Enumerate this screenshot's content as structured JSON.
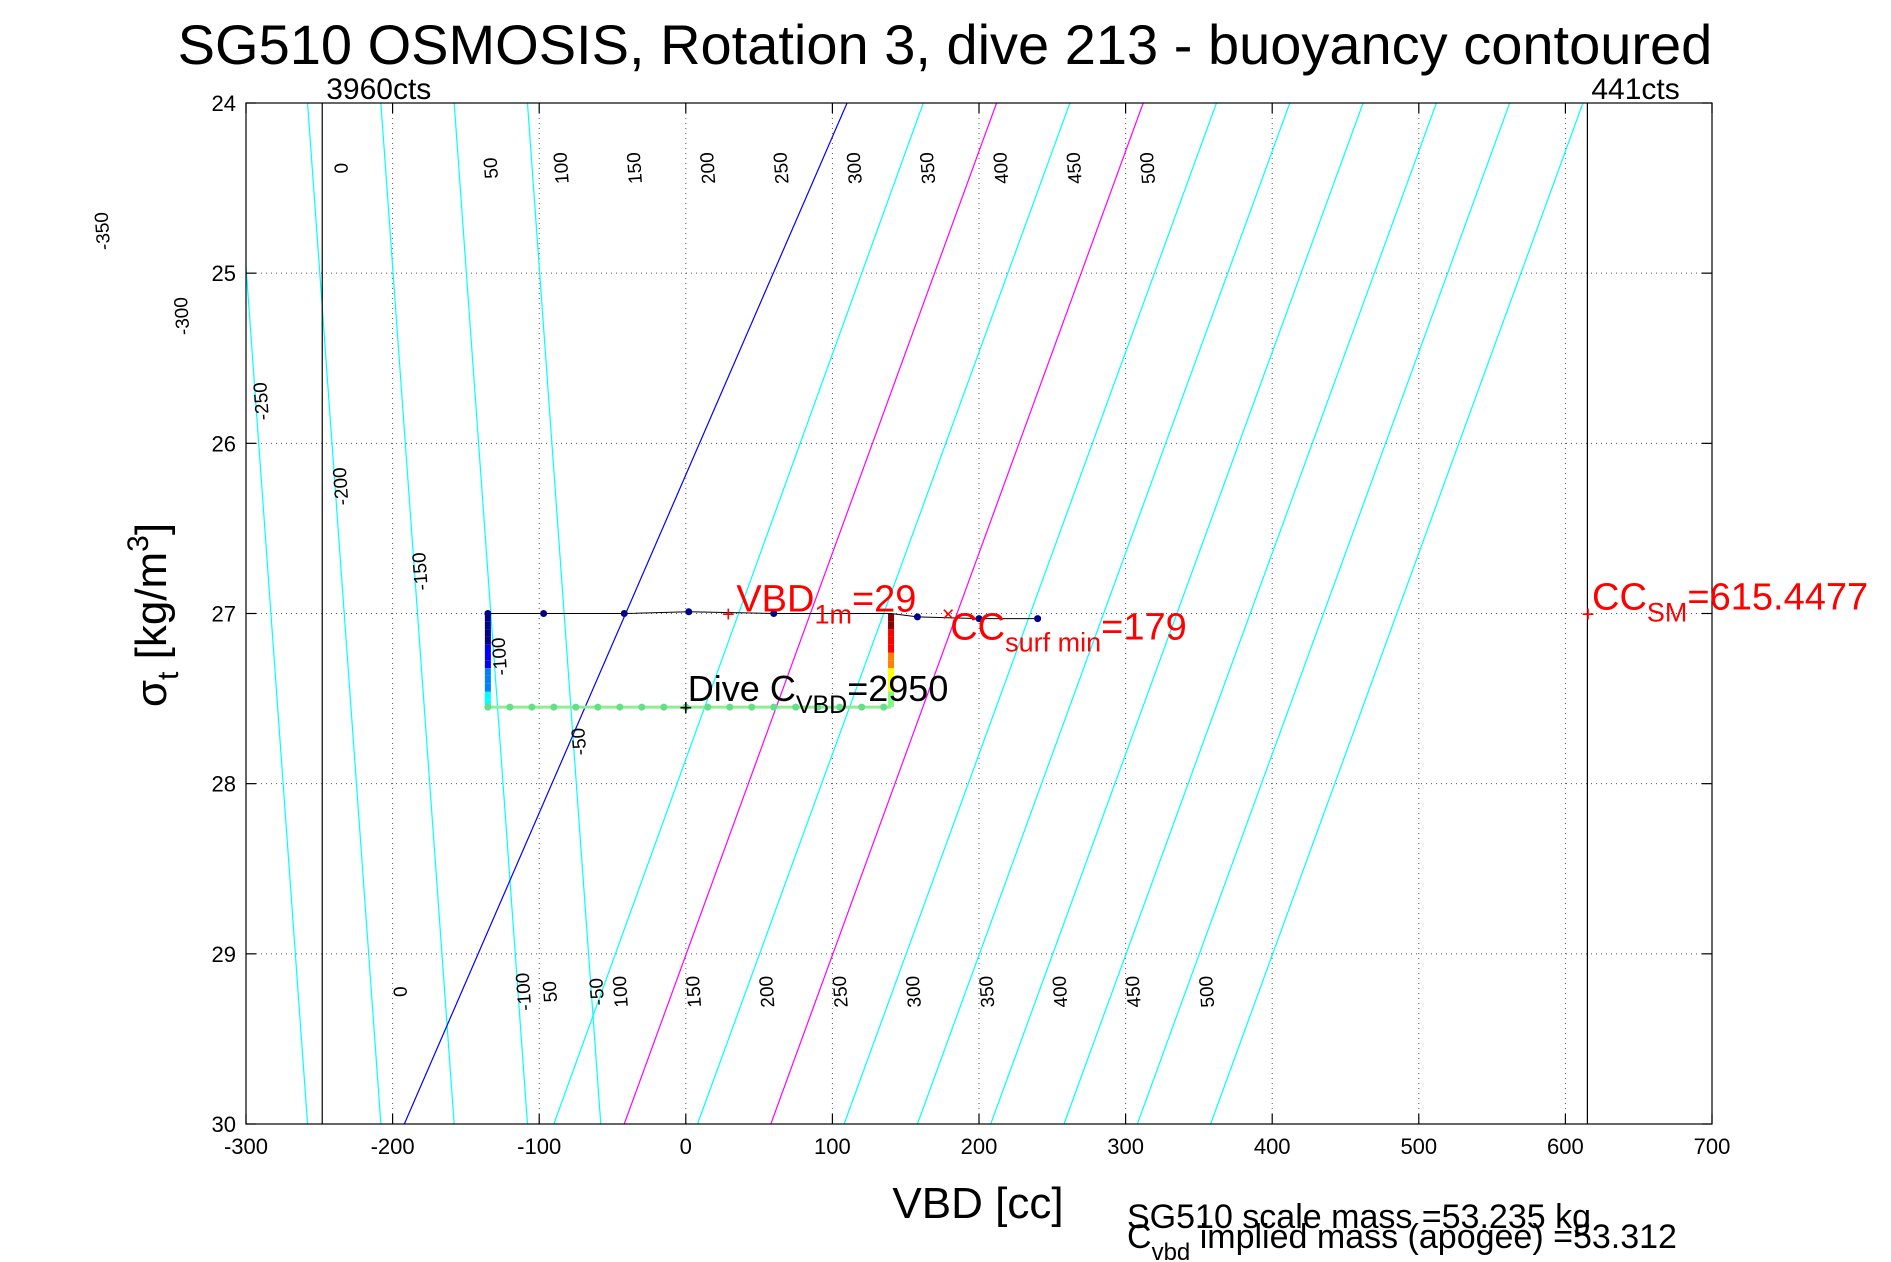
{
  "chart_data": {
    "type": "scatter",
    "title": "SG510 OSMOSIS, Rotation 3, dive 213 - buoyancy contoured",
    "xlabel": "VBD [cc]",
    "ylabel": {
      "main": "σ",
      "sub": "t",
      "unit_prefix": " [kg/m",
      "unit_sup": "3",
      "unit_suffix": "]"
    },
    "xlim": [
      -300,
      700
    ],
    "ylim": [
      24,
      30
    ],
    "y_reversed": true,
    "grid": "dotted",
    "x_ticks": [
      -300,
      -200,
      -100,
      0,
      100,
      200,
      300,
      400,
      500,
      600,
      700
    ],
    "y_ticks": [
      24,
      25,
      26,
      27,
      28,
      29,
      30
    ],
    "x_tick_labels": [
      "-300",
      "-200",
      "-100",
      "0",
      "100",
      "200",
      "300",
      "400",
      "500",
      "600",
      "700"
    ],
    "y_tick_labels": [
      "24",
      "25",
      "26",
      "27",
      "28",
      "29",
      "30"
    ],
    "vertical_lines": [
      {
        "x": -248,
        "label": "3960cts",
        "color": "#000000"
      },
      {
        "x": 615,
        "label": "441cts",
        "color": "#000000"
      }
    ],
    "buoyancy_contours": {
      "values": [
        -350,
        -300,
        -250,
        -200,
        -150,
        -100,
        -50,
        0,
        50,
        100,
        150,
        200,
        250,
        300,
        350,
        400,
        450,
        500
      ],
      "x_at_bottom": [
        -358,
        -308,
        -258,
        -208,
        -158,
        -108,
        -58,
        -192,
        -90,
        -42,
        8,
        58,
        108,
        158,
        208,
        258,
        308,
        358
      ],
      "x_at_top": [
        -408,
        -358,
        -308,
        -258,
        -208,
        -158,
        -108,
        110,
        162,
        212,
        262,
        312,
        362,
        412,
        462,
        512,
        562,
        612
      ],
      "top_labels": [
        "-350",
        "-300",
        "-250",
        "-200",
        "-150",
        "-100",
        "-50",
        "0",
        "50",
        "100",
        "150",
        "200",
        "250",
        "300",
        "350",
        "400",
        "450",
        "500"
      ],
      "bottom_labels": [
        "-100",
        "-50",
        "0",
        "50",
        "100",
        "150",
        "200",
        "250",
        "300",
        "350",
        "400",
        "450",
        "500"
      ],
      "colors": {
        "zero": "#0000ff",
        "highlight": "#ff00ff",
        "default": "#00ffff"
      },
      "highlight_values": [
        100,
        200
      ]
    },
    "series": [
      {
        "line_points": [
          {
            "x": -135,
            "y": 27.0
          },
          {
            "x": -97,
            "y": 27.0
          },
          {
            "x": -42,
            "y": 27.0
          },
          {
            "x": 2,
            "y": 26.99
          },
          {
            "x": 60,
            "y": 27.0
          },
          {
            "x": 140,
            "y": 27.0
          },
          {
            "x": 158,
            "y": 27.02
          },
          {
            "x": 200,
            "y": 27.03
          },
          {
            "x": 240,
            "y": 27.03
          }
        ],
        "color": "#000000"
      },
      {
        "markers": [
          {
            "x": -135,
            "y": 27.0
          },
          {
            "x": -97,
            "y": 27.0
          },
          {
            "x": -42,
            "y": 27.0
          },
          {
            "x": 2,
            "y": 26.99
          },
          {
            "x": 60,
            "y": 27.0
          },
          {
            "x": 158,
            "y": 27.02
          },
          {
            "x": 200,
            "y": 27.03
          },
          {
            "x": 240,
            "y": 27.03
          }
        ],
        "color": "#00008b"
      }
    ],
    "profile": {
      "left_x": -135,
      "right_x": 140,
      "top_y": 27.0,
      "bottom_y": 27.55,
      "bottom_points_x": [
        -135,
        -120,
        -105,
        -90,
        -75,
        -60,
        -45,
        -30,
        -15,
        0,
        15,
        30,
        45,
        60,
        75,
        90,
        105,
        120,
        135
      ],
      "colormap": [
        "#00008b",
        "#0000ff",
        "#0080ff",
        "#00ffff",
        "#80ff80",
        "#ffff00",
        "#ff8000",
        "#ff0000",
        "#8b0000"
      ]
    },
    "annotations": [
      {
        "text": "VBD",
        "sub": "1m",
        "suffix": "=29",
        "x": 29,
        "y": 27.0,
        "color": "#ff0000"
      },
      {
        "text": "CC",
        "sub": "surf min",
        "suffix": "=179",
        "x": 179,
        "y": 27.0,
        "color": "#ff0000"
      },
      {
        "text": "CC",
        "sub": "SM",
        "suffix": "=615.4477",
        "x": 615.4477,
        "y": 27.0,
        "color": "#ff0000"
      },
      {
        "text": "Dive C",
        "sub": "VBD",
        "suffix": "=2950",
        "x": 0,
        "y": 27.55,
        "color": "#000000"
      }
    ],
    "footer_lines": [
      "SG510 scale mass =53.235 kg",
      {
        "text": "C",
        "sub": "vbd",
        "suffix": " implied mass (apogee) =53.312"
      }
    ]
  }
}
